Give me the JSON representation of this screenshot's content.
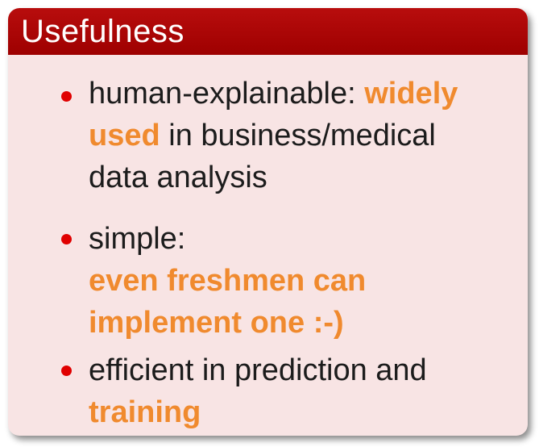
{
  "header": {
    "title": "Usefulness"
  },
  "colors": {
    "header_bg": "#a80000",
    "body_bg": "#f8e4e4",
    "bullet": "#e00000",
    "highlight": "#f08a2e"
  },
  "items": [
    {
      "line1_a": "human-explainable: ",
      "line1_hl": "widely",
      "line2_hl": "used",
      "line2_b": " in business/medical",
      "line3": "data analysis"
    },
    {
      "line1": "simple:",
      "line2_hl": "even freshmen can",
      "line3_hl": "implement one :-)"
    },
    {
      "line1": "efficient in prediction and",
      "line2_hl": "training"
    }
  ]
}
